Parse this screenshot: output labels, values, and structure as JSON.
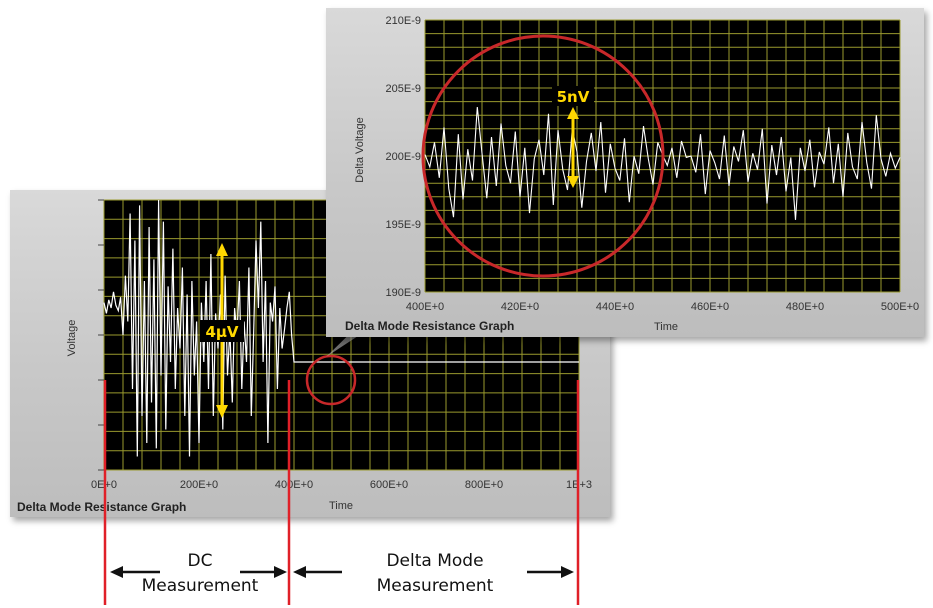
{
  "chart_data": [
    {
      "type": "line",
      "title": "Delta Mode Resistance Graph",
      "xlabel": "Time",
      "ylabel": "Voltage",
      "xlim": [
        0,
        1000
      ],
      "x_ticks": [
        "0E+0",
        "200E+0",
        "400E+0",
        "600E+0",
        "800E+0",
        "1E+3"
      ],
      "y_ticks": [],
      "grid": true,
      "series": [
        {
          "x": [
            0,
            5,
            10,
            15,
            20,
            25,
            30,
            35,
            40,
            45,
            50,
            55,
            60,
            65,
            70,
            75,
            80,
            85,
            90,
            95,
            100,
            105,
            110,
            115,
            120,
            125,
            130,
            135,
            140,
            145,
            150,
            155,
            160,
            165,
            170,
            175,
            180,
            185,
            190,
            195,
            200,
            205,
            210,
            215,
            220,
            225,
            230,
            235,
            240,
            245,
            250,
            255,
            260,
            265,
            270,
            275,
            280,
            285,
            290,
            295,
            300,
            305,
            310,
            315,
            320,
            325,
            330,
            335,
            340,
            345,
            350,
            355,
            360,
            365,
            370,
            375,
            380,
            385,
            390,
            395,
            400,
            450,
            500,
            550,
            600,
            650,
            700,
            750,
            800,
            850,
            900,
            950,
            1000
          ],
          "y": [
            0.62,
            0.58,
            0.63,
            0.6,
            0.66,
            0.61,
            0.59,
            0.64,
            0.5,
            0.72,
            0.55,
            0.95,
            0.3,
            0.85,
            0.05,
            0.98,
            0.2,
            0.7,
            0.1,
            0.9,
            0.25,
            0.78,
            0.08,
            1.0,
            0.35,
            0.92,
            0.15,
            0.68,
            0.4,
            0.82,
            0.3,
            0.6,
            0.45,
            0.75,
            0.2,
            0.65,
            0.05,
            0.7,
            0.35,
            0.55,
            0.1,
            0.62,
            0.4,
            0.7,
            0.3,
            0.8,
            0.2,
            0.58,
            0.45,
            0.65,
            0.15,
            0.72,
            0.35,
            0.52,
            0.25,
            0.6,
            0.5,
            0.7,
            0.3,
            0.55,
            0.4,
            0.75,
            0.2,
            0.5,
            0.85,
            0.6,
            0.92,
            0.4,
            0.7,
            0.1,
            0.62,
            0.55,
            0.68,
            0.3,
            0.6,
            0.45,
            0.52,
            0.6,
            0.66,
            0.5,
            0.4,
            0.4,
            0.4,
            0.4,
            0.4,
            0.4,
            0.4,
            0.4,
            0.4,
            0.4,
            0.4,
            0.4,
            0.4
          ]
        }
      ]
    },
    {
      "type": "line",
      "title": "Delta Mode Resistance Graph",
      "xlabel": "Time",
      "ylabel": "Delta Voltage",
      "xlim": [
        400,
        500
      ],
      "ylim": [
        190,
        210
      ],
      "x_ticks": [
        "400E+0",
        "420E+0",
        "440E+0",
        "460E+0",
        "480E+0",
        "500E+0"
      ],
      "y_ticks": [
        "190E-9",
        "195E-9",
        "200E-9",
        "205E-9",
        "210E-9"
      ],
      "grid": true,
      "series": [
        {
          "x": [
            400,
            401,
            402,
            403,
            404,
            405,
            406,
            407,
            408,
            409,
            410,
            411,
            412,
            413,
            414,
            415,
            416,
            417,
            418,
            419,
            420,
            421,
            422,
            423,
            424,
            425,
            426,
            427,
            428,
            429,
            430,
            431,
            432,
            433,
            434,
            435,
            436,
            437,
            438,
            439,
            440,
            441,
            442,
            443,
            444,
            445,
            446,
            447,
            448,
            449,
            450,
            451,
            452,
            453,
            454,
            455,
            456,
            457,
            458,
            459,
            460,
            461,
            462,
            463,
            464,
            465,
            466,
            467,
            468,
            469,
            470,
            471,
            472,
            473,
            474,
            475,
            476,
            477,
            478,
            479,
            480,
            481,
            482,
            483,
            484,
            485,
            486,
            487,
            488,
            489,
            490,
            491,
            492,
            493,
            494,
            495,
            496,
            497,
            498,
            499,
            500
          ],
          "y": [
            200.1,
            199.2,
            201.0,
            198.4,
            202.1,
            197.6,
            195.5,
            201.6,
            196.8,
            200.5,
            198.2,
            203.6,
            200.2,
            196.9,
            201.4,
            197.8,
            202.4,
            199.3,
            198.0,
            201.8,
            197.0,
            200.6,
            195.8,
            199.8,
            201.2,
            198.6,
            203.1,
            196.4,
            201.9,
            199.0,
            197.5,
            202.0,
            200.3,
            196.2,
            199.6,
            201.7,
            198.9,
            202.5,
            197.3,
            200.9,
            199.1,
            198.2,
            201.3,
            196.6,
            200.0,
            198.7,
            202.2,
            199.8,
            197.9,
            201.0,
            200.1,
            199.3,
            200.6,
            198.4,
            201.1,
            199.9,
            200.0,
            198.8,
            201.6,
            197.2,
            200.4,
            199.5,
            198.3,
            201.5,
            197.8,
            200.7,
            199.6,
            201.9,
            198.1,
            200.2,
            199.0,
            202.0,
            196.5,
            200.8,
            198.6,
            201.4,
            197.4,
            199.9,
            195.3,
            200.6,
            198.9,
            201.2,
            197.7,
            200.3,
            199.4,
            202.1,
            198.0,
            200.9,
            197.0,
            201.7,
            199.2,
            198.3,
            202.5,
            199.5,
            197.6,
            203.0,
            199.8,
            198.5,
            200.2,
            199.1,
            199.9
          ]
        }
      ]
    }
  ],
  "annotations": {
    "dc_amplitude": "4µV",
    "delta_amplitude": "5nV",
    "dc_label_line1": "DC",
    "dc_label_line2": "Measurement",
    "delta_label_line1": "Delta Mode",
    "delta_label_line2": "Measurement"
  },
  "colors": {
    "plot_bg": "#000000",
    "grid": "#9a9a2e",
    "trace": "#ffffff",
    "circle": "#c8282a",
    "marker_line": "#e02028",
    "arrow": "#ffd800"
  }
}
